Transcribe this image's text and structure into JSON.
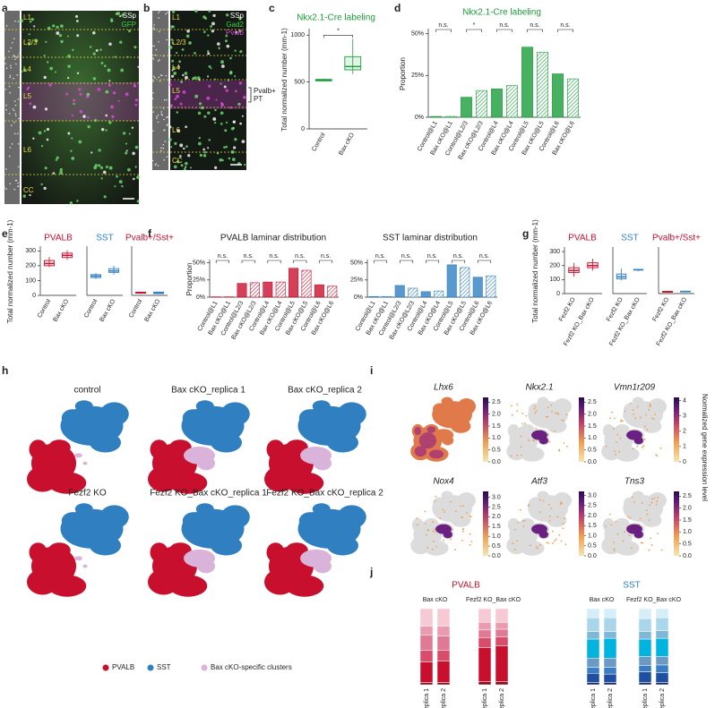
{
  "panel_labels": [
    "a",
    "b",
    "c",
    "d",
    "e",
    "f",
    "g",
    "h",
    "i",
    "j"
  ],
  "micrographs": [
    {
      "region": "SSp",
      "channels": [
        {
          "label": "GFP",
          "color": "#3fd14a"
        }
      ],
      "layers": [
        "L1",
        "L2/3",
        "L4",
        "L5",
        "L6",
        "CC"
      ]
    },
    {
      "region": "SSp",
      "channels": [
        {
          "label": "Gad2",
          "color": "#3fd14a"
        },
        {
          "label": "Pvalb",
          "color": "#e048e0"
        }
      ],
      "layers": [
        "L1",
        "L2/3",
        "L4",
        "L5",
        "L6",
        "CC"
      ],
      "annotation": [
        "Pvalb+",
        "PT"
      ]
    }
  ],
  "chart_data": [
    {
      "type": "box",
      "title": "Nkx2.1-Cre labeling",
      "title_color": "#1a9e3a",
      "ylabel": "Total normalized number (mm-1)",
      "categories": [
        "Control",
        "Bax cKO"
      ],
      "boxes": [
        {
          "min": 505,
          "q1": 512,
          "median": 520,
          "q3": 528,
          "max": 535
        },
        {
          "min": 585,
          "q1": 630,
          "median": 665,
          "q3": 770,
          "max": 960
        }
      ],
      "colors": [
        "#1a9e3a",
        "#1a9e3a"
      ],
      "ylim": [
        0,
        1050
      ],
      "yticks": [
        0,
        500,
        1000
      ],
      "significance": [
        "*"
      ]
    },
    {
      "type": "bar",
      "title": "Nkx2.1-Cre labeling",
      "title_color": "#1a9e3a",
      "ylabel": "Proportion",
      "categories": [
        "Control@L1",
        "Bax cKO@L1",
        "Control@L2/3",
        "Bax cKO@L2/3",
        "Control@L4",
        "Bax cKO@L4",
        "Control@L5",
        "Bax cKO@L5",
        "Control@L6",
        "Bax cKO@L6"
      ],
      "values": [
        0.5,
        0.5,
        12,
        16,
        17,
        19,
        42,
        39,
        26,
        23
      ],
      "color": "#1a9e3a",
      "ylim": [
        0,
        52
      ],
      "yticks": [
        {
          "value": 0,
          "label": "0%"
        },
        {
          "value": 25,
          "label": "25%"
        },
        {
          "value": 50,
          "label": "50%"
        }
      ],
      "significance": [
        "n.s.",
        "*",
        "n.s.",
        "n.s.",
        "n.s."
      ]
    },
    {
      "type": "box",
      "title": "PVALB",
      "title_color": "#c8102e",
      "ylabel": "Total normalized number (mm-1)",
      "categories": [
        "Control",
        "Bax cKO"
      ],
      "boxes": [
        {
          "min": 190,
          "q1": 200,
          "median": 215,
          "q3": 235,
          "max": 260
        },
        {
          "min": 240,
          "q1": 255,
          "median": 270,
          "q3": 285,
          "max": 305
        }
      ],
      "colors": [
        "#c8102e",
        "#c8102e"
      ],
      "ylim": [
        0,
        320
      ],
      "yticks": [
        0,
        100,
        200,
        300
      ]
    },
    {
      "type": "box",
      "title": "SST",
      "title_color": "#2f7fc1",
      "categories": [
        "Control",
        "Bax cKO"
      ],
      "boxes": [
        {
          "min": 110,
          "q1": 120,
          "median": 130,
          "q3": 140,
          "max": 150
        },
        {
          "min": 140,
          "q1": 155,
          "median": 165,
          "q3": 180,
          "max": 200
        }
      ],
      "colors": [
        "#2f7fc1",
        "#2f7fc1"
      ],
      "ylim": [
        0,
        320
      ]
    },
    {
      "type": "box",
      "title": "Pvalb+/Sst+",
      "title_color": "#c8102e",
      "categories": [
        "Control",
        "Bax cKO"
      ],
      "boxes": [
        {
          "min": 10,
          "q1": 15,
          "median": 18,
          "q3": 22,
          "max": 25
        },
        {
          "min": 8,
          "q1": 12,
          "median": 18,
          "q3": 22,
          "max": 26
        }
      ],
      "colors": [
        "#c8102e",
        "#2f7fc1"
      ],
      "ylim": [
        0,
        320
      ]
    },
    {
      "type": "bar",
      "title": "PVALB laminar distribution",
      "ylabel": "Proportion",
      "categories": [
        "Control@L1",
        "Bax cKO@L1",
        "Control@L2/3",
        "Bax cKO@L2/3",
        "Control@L4",
        "Bax cKO@L4",
        "Control@L5",
        "Bax cKO@L5",
        "Control@L6",
        "Bax cKO@L6"
      ],
      "values": [
        0.5,
        0.5,
        20,
        21,
        22,
        22,
        42,
        39,
        18,
        16
      ],
      "color": "#c8102e",
      "ylim": [
        0,
        52
      ],
      "yticks": [
        {
          "value": 0,
          "label": "0%"
        },
        {
          "value": 25,
          "label": "25%"
        },
        {
          "value": 50,
          "label": "50%"
        }
      ],
      "significance": [
        "n.s.",
        "n.s.",
        "n.s.",
        "n.s.",
        "n.s."
      ]
    },
    {
      "type": "bar",
      "title": "SST laminar distribution",
      "categories": [
        "Control@L1",
        "Bax cKO@L1",
        "Control@L2/3",
        "Bax cKO@L2/3",
        "Control@L4",
        "Bax cKO@L4",
        "Control@L5",
        "Bax cKO@L5",
        "Control@L6",
        "Bax cKO@L6"
      ],
      "values": [
        1,
        1,
        17,
        13,
        8,
        9,
        47,
        43,
        29,
        31
      ],
      "color": "#2f7fc1",
      "ylim": [
        0,
        52
      ],
      "yticks": [
        {
          "value": 0,
          "label": "0%"
        },
        {
          "value": 25,
          "label": "25%"
        },
        {
          "value": 50,
          "label": "50%"
        }
      ],
      "significance": [
        "n.s.",
        "n.s.",
        "n.s.",
        "n.s.",
        "n.s."
      ]
    },
    {
      "type": "box",
      "title": "PVALB",
      "title_color": "#c8102e",
      "ylabel": "Total normalized number (mm-1)",
      "categories": [
        "Fezf2 KO",
        "Fezf2 KO_Bax cKO"
      ],
      "boxes": [
        {
          "min": 120,
          "q1": 150,
          "median": 165,
          "q3": 185,
          "max": 220
        },
        {
          "min": 165,
          "q1": 185,
          "median": 200,
          "q3": 220,
          "max": 250
        }
      ],
      "colors": [
        "#c8102e",
        "#c8102e"
      ],
      "ylim": [
        0,
        320
      ],
      "yticks": [
        0,
        100,
        200,
        300
      ]
    },
    {
      "type": "box",
      "title": "SST",
      "title_color": "#2f7fc1",
      "categories": [
        "Fezf2 KO",
        "Fezf2 KO_Bax cKO"
      ],
      "boxes": [
        {
          "min": 95,
          "q1": 105,
          "median": 120,
          "q3": 140,
          "max": 180
        },
        {
          "min": 160,
          "q1": 168,
          "median": 170,
          "q3": 173,
          "max": 176
        }
      ],
      "colors": [
        "#2f7fc1",
        "#2f7fc1"
      ],
      "ylim": [
        0,
        320
      ]
    },
    {
      "type": "box",
      "title": "Pvalb+/Sst+",
      "title_color": "#c8102e",
      "categories": [
        "Fezf2 KO",
        "Fezf2 KO_Bax cKO"
      ],
      "boxes": [
        {
          "min": 8,
          "q1": 10,
          "median": 13,
          "q3": 16,
          "max": 18
        },
        {
          "min": 10,
          "q1": 12,
          "median": 15,
          "q3": 17,
          "max": 19
        }
      ],
      "colors": [
        "#c8102e",
        "#2f7fc1"
      ],
      "ylim": [
        0,
        320
      ]
    },
    {
      "type": "stacked_bar",
      "title": "PVALB",
      "title_color": "#c8102e",
      "groups": [
        "Bax cKO",
        "Fezf2 KO_Bax cKO"
      ],
      "categories": [
        "replica 1",
        "replica 2",
        "replica 1",
        "replica 2"
      ],
      "series": [
        {
          "color": "#8b0f1f",
          "values": [
            3,
            3,
            4,
            4
          ]
        },
        {
          "color": "#c8102e",
          "values": [
            27,
            28,
            45,
            47
          ]
        },
        {
          "color": "#d94c6a",
          "values": [
            15,
            14,
            13,
            12
          ]
        },
        {
          "color": "#e07a94",
          "values": [
            20,
            19,
            10,
            10
          ]
        },
        {
          "color": "#eb9bb0",
          "values": [
            12,
            13,
            10,
            9
          ]
        },
        {
          "color": "#f6c9d4",
          "values": [
            23,
            23,
            18,
            18
          ]
        }
      ]
    },
    {
      "type": "stacked_bar",
      "title": "SST",
      "title_color": "#2f7fc1",
      "groups": [
        "Bax cKO",
        "Fezf2 KO_Bax cKO"
      ],
      "categories": [
        "replica 1",
        "replica 2",
        "replica 1",
        "replica 2"
      ],
      "series": [
        {
          "color": "#1a2a6c",
          "values": [
            3,
            3,
            3,
            3
          ]
        },
        {
          "color": "#1f4fa0",
          "values": [
            12,
            11,
            14,
            13
          ]
        },
        {
          "color": "#3b7dc4",
          "values": [
            8,
            9,
            8,
            10
          ]
        },
        {
          "color": "#6b9bc3",
          "values": [
            12,
            12,
            12,
            11
          ]
        },
        {
          "color": "#00b4e0",
          "values": [
            25,
            26,
            23,
            24
          ]
        },
        {
          "color": "#7fb8d6",
          "values": [
            10,
            9,
            10,
            10
          ]
        },
        {
          "color": "#a9d6ea",
          "values": [
            18,
            18,
            17,
            17
          ]
        },
        {
          "color": "#d6eef8",
          "values": [
            12,
            12,
            13,
            12
          ]
        }
      ]
    }
  ],
  "umaps": {
    "titles": [
      "control",
      "Bax cKO_replica 1",
      "Bax cKO_replica 2",
      "Fezf2 KO",
      "Fezf2 KO_Bax cKO_replica 1",
      "Fezf2 KO_Bax cKO_replica 2"
    ],
    "legend": [
      {
        "label": "PVALB",
        "color": "#c8102e"
      },
      {
        "label": "SST",
        "color": "#2f7fc1"
      },
      {
        "label": "Bax cKO-specific clusters",
        "color": "#d9b3d9"
      }
    ]
  },
  "gene_panels": {
    "colorbar_label": "Normalized gene expression level",
    "genes": [
      {
        "name": "Lhx6",
        "lim": [
          0,
          2.7
        ],
        "ticks": [
          {
            "value": 0,
            "label": "0.0"
          },
          0.5,
          {
            "value": 1,
            "label": "1.0"
          },
          1.5,
          {
            "value": 2,
            "label": "2.0"
          },
          2.5
        ]
      },
      {
        "name": "Nkx2.1",
        "lim": [
          0,
          2.7
        ],
        "ticks": [
          {
            "value": 0,
            "label": "0.0"
          },
          0.5,
          {
            "value": 1,
            "label": "1.0"
          },
          1.5,
          {
            "value": 2,
            "label": "2.0"
          },
          2.5
        ]
      },
      {
        "name": "Vmn1r209",
        "lim": [
          0,
          4.2
        ],
        "ticks": [
          0,
          1,
          2,
          3,
          4
        ]
      },
      {
        "name": "Nox4",
        "lim": [
          0,
          3.3
        ],
        "ticks": [
          {
            "value": 0,
            "label": "0.0"
          },
          0.5,
          {
            "value": 1,
            "label": "1.0"
          },
          1.5,
          {
            "value": 2,
            "label": "2.0"
          },
          2.5,
          {
            "value": 3,
            "label": "3.0"
          }
        ]
      },
      {
        "name": "Atf3",
        "lim": [
          0,
          3.2
        ],
        "ticks": [
          {
            "value": 0,
            "label": "0.0"
          },
          0.5,
          {
            "value": 1,
            "label": "1.0"
          },
          1.5,
          {
            "value": 2,
            "label": "2.0"
          },
          2.5,
          {
            "value": 3,
            "label": "3.0"
          }
        ]
      },
      {
        "name": "Tns3",
        "lim": [
          0,
          2.7
        ],
        "ticks": [
          {
            "value": 0,
            "label": "0.0"
          },
          0.5,
          {
            "value": 1,
            "label": "1.0"
          },
          1.5,
          {
            "value": 2,
            "label": "2.0"
          },
          2.5
        ]
      }
    ]
  }
}
